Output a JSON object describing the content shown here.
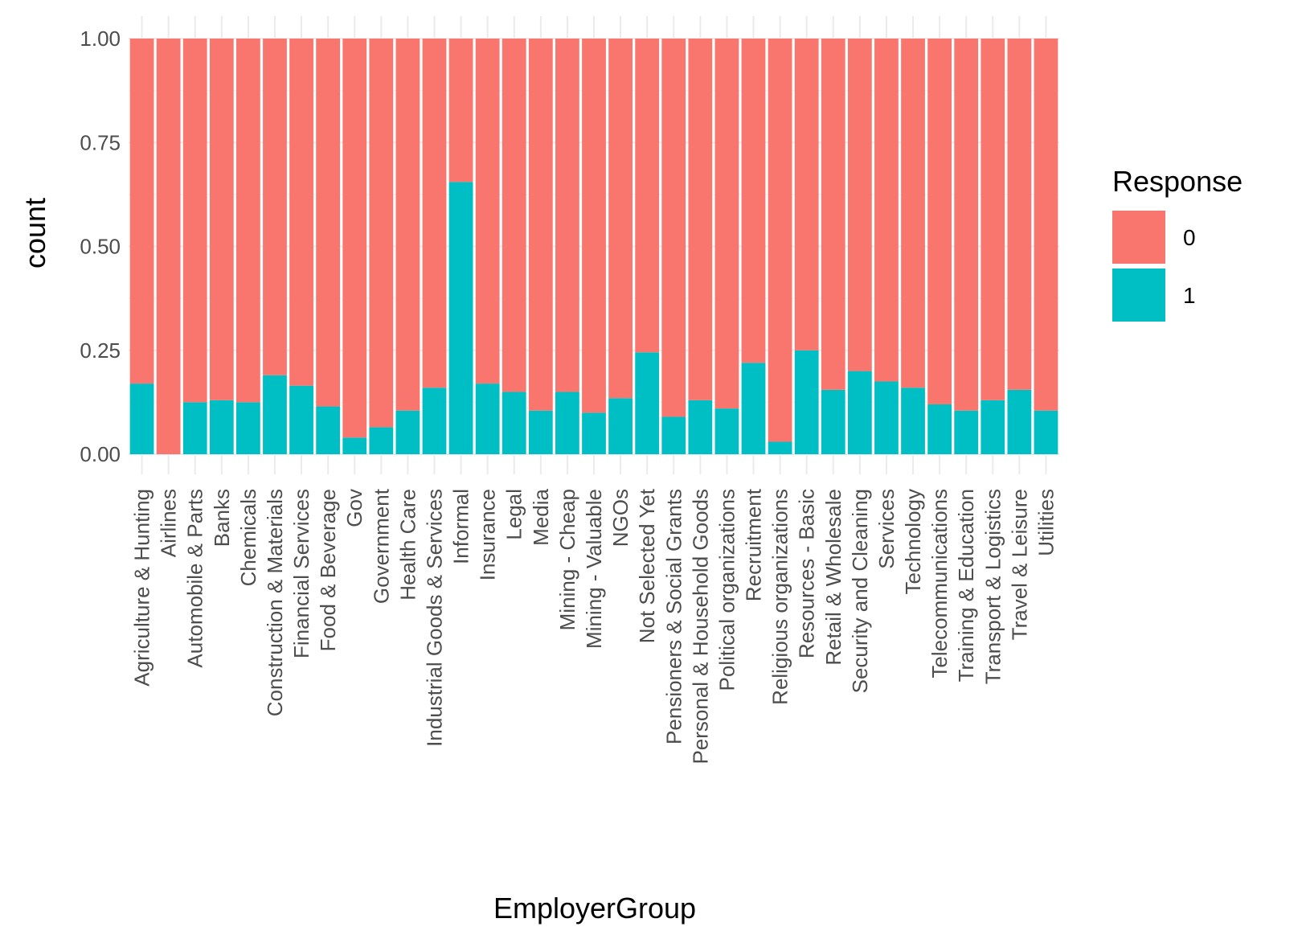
{
  "chart_data": {
    "type": "bar",
    "stacked": true,
    "position": "fill",
    "xlabel": "EmployerGroup",
    "ylabel": "count",
    "ylim": [
      0,
      1
    ],
    "yticks": [
      "0.00",
      "0.25",
      "0.50",
      "0.75",
      "1.00"
    ],
    "grid": true,
    "legend": {
      "title": "Response",
      "placement": "right",
      "entries": [
        {
          "label": "0",
          "color": "#F8766D"
        },
        {
          "label": "1",
          "color": "#00BFC4"
        }
      ]
    },
    "categories": [
      "Agriculture & Hunting",
      "Airlines",
      "Automobile & Parts",
      "Banks",
      "Chemicals",
      "Construction & Materials",
      "Financial Services",
      "Food & Beverage",
      "Gov",
      "Government",
      "Health Care",
      "Industrial Goods & Services",
      "Informal",
      "Insurance",
      "Legal",
      "Media",
      "Mining - Cheap",
      "Mining - Valuable",
      "NGOs",
      "Not Selected Yet",
      "Pensioners & Social Grants",
      "Personal & Household Goods",
      "Political organizations",
      "Recruitment",
      "Religious organizations",
      "Resources - Basic",
      "Retail & Wholesale",
      "Security and Cleaning",
      "Services",
      "Technology",
      "Telecommunications",
      "Training & Education",
      "Transport & Logistics",
      "Travel & Leisure",
      "Utilities"
    ],
    "series": [
      {
        "name": "0",
        "color": "#F8766D",
        "values": [
          0.83,
          1.0,
          0.875,
          0.87,
          0.875,
          0.81,
          0.835,
          0.885,
          0.96,
          0.935,
          0.895,
          0.84,
          0.345,
          0.83,
          0.85,
          0.895,
          0.85,
          0.9,
          0.865,
          0.755,
          0.91,
          0.87,
          0.89,
          0.78,
          0.97,
          0.75,
          0.845,
          0.8,
          0.825,
          0.84,
          0.88,
          0.895,
          0.87,
          0.845,
          0.895
        ]
      },
      {
        "name": "1",
        "color": "#00BFC4",
        "values": [
          0.17,
          0.0,
          0.125,
          0.13,
          0.125,
          0.19,
          0.165,
          0.115,
          0.04,
          0.065,
          0.105,
          0.16,
          0.655,
          0.17,
          0.15,
          0.105,
          0.15,
          0.1,
          0.135,
          0.245,
          0.09,
          0.13,
          0.11,
          0.22,
          0.03,
          0.25,
          0.155,
          0.2,
          0.175,
          0.16,
          0.12,
          0.105,
          0.13,
          0.155,
          0.105
        ]
      }
    ]
  }
}
